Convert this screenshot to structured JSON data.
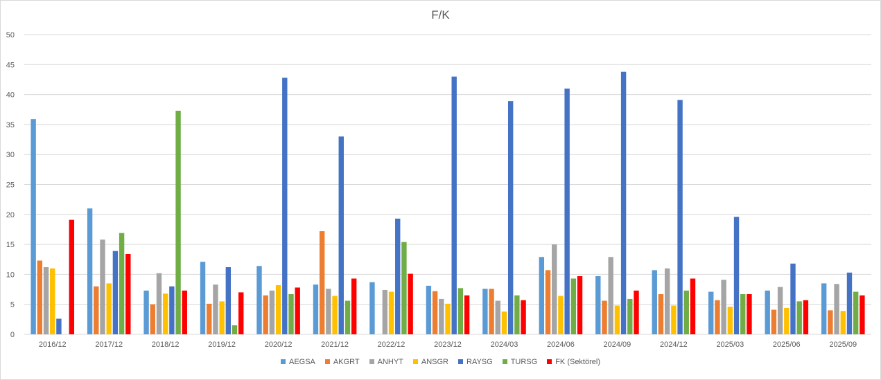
{
  "chart_data": {
    "type": "bar",
    "title": "F/K",
    "xlabel": "",
    "ylabel": "",
    "ylim": [
      0,
      50
    ],
    "yticks": [
      0,
      5,
      10,
      15,
      20,
      25,
      30,
      35,
      40,
      45,
      50
    ],
    "grid": true,
    "legend": "bottom",
    "categories": [
      "2016/12",
      "2017/12",
      "2018/12",
      "2019/12",
      "2020/12",
      "2021/12",
      "2022/12",
      "2023/12",
      "2024/03",
      "2024/06",
      "2024/09",
      "2024/12",
      "2025/03",
      "2025/06",
      "2025/09"
    ],
    "series": [
      {
        "name": "AEGSA",
        "color": "#5b9bd5",
        "values": [
          35.9,
          21.0,
          7.3,
          12.1,
          11.4,
          8.3,
          8.7,
          8.1,
          7.6,
          12.9,
          9.7,
          10.7,
          7.1,
          7.3,
          8.5
        ]
      },
      {
        "name": "AKGRT",
        "color": "#ed7d31",
        "values": [
          12.3,
          8.0,
          5.0,
          5.1,
          6.5,
          17.2,
          0,
          7.2,
          7.6,
          10.7,
          5.6,
          6.7,
          5.7,
          4.1,
          4.0
        ]
      },
      {
        "name": "ANHYT",
        "color": "#a5a5a5",
        "values": [
          11.2,
          15.8,
          10.2,
          8.3,
          7.3,
          7.6,
          7.4,
          5.9,
          5.6,
          15.0,
          12.9,
          11.0,
          9.1,
          7.9,
          8.4
        ]
      },
      {
        "name": "ANSGR",
        "color": "#ffc000",
        "values": [
          11.0,
          8.5,
          6.8,
          5.5,
          8.2,
          6.4,
          7.1,
          5.1,
          3.8,
          6.4,
          4.8,
          4.8,
          4.6,
          4.4,
          3.9
        ]
      },
      {
        "name": "RAYSG",
        "color": "#4472c4",
        "values": [
          2.6,
          13.9,
          8.0,
          11.2,
          42.8,
          33.0,
          19.3,
          43.0,
          38.9,
          41.0,
          43.8,
          39.1,
          19.6,
          11.8,
          10.3
        ]
      },
      {
        "name": "TURSG",
        "color": "#70ad47",
        "values": [
          0,
          16.9,
          37.3,
          1.5,
          6.7,
          5.6,
          15.4,
          7.7,
          6.5,
          9.3,
          5.9,
          7.3,
          6.7,
          5.5,
          7.1
        ]
      },
      {
        "name": "FK (Sektörel)",
        "color": "#ff0000",
        "values": [
          19.1,
          13.4,
          7.3,
          7.0,
          7.8,
          9.3,
          10.1,
          6.5,
          5.7,
          9.7,
          7.3,
          9.3,
          6.7,
          5.7,
          6.5
        ]
      }
    ]
  }
}
